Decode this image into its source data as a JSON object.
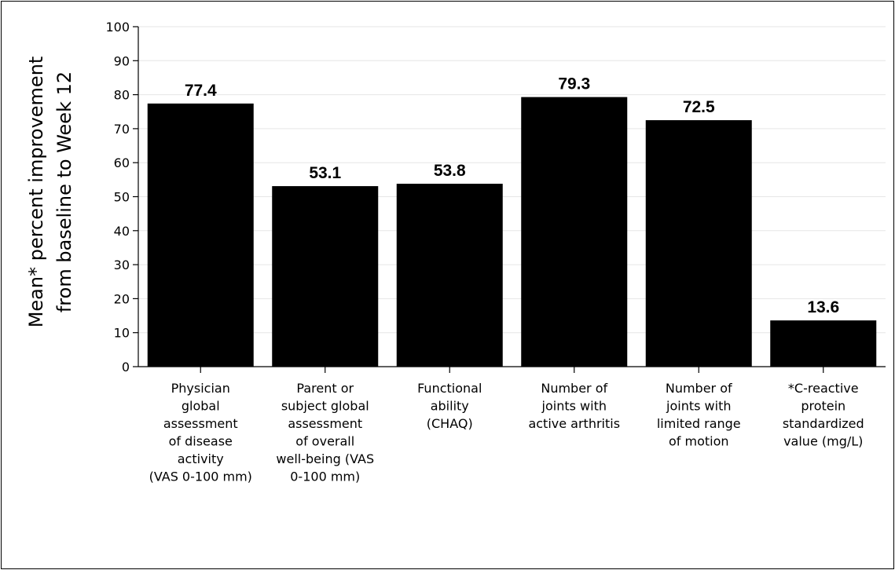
{
  "chart_data": {
    "type": "bar",
    "title": "",
    "xlabel": "",
    "ylabel_lines": [
      "Mean* percent improvement",
      "from baseline to Week 12"
    ],
    "ylim": [
      0,
      100
    ],
    "yticks": [
      0,
      10,
      20,
      30,
      40,
      50,
      60,
      70,
      80,
      90,
      100
    ],
    "categories": [
      [
        "Physician",
        "global",
        "assessment",
        "of disease",
        "activity",
        "(VAS 0-100 mm)"
      ],
      [
        "Parent or",
        "subject global",
        "assessment",
        "of overall",
        "well-being (VAS",
        "0-100 mm)"
      ],
      [
        "Functional",
        "ability",
        "(CHAQ)"
      ],
      [
        "Number of",
        "joints with",
        "active arthritis"
      ],
      [
        "Number of",
        "joints with",
        "limited range",
        "of motion"
      ],
      [
        "*C-reactive",
        "protein",
        "standardized",
        "value (mg/L)"
      ]
    ],
    "values": [
      77.4,
      53.1,
      53.8,
      79.3,
      72.5,
      13.6
    ],
    "value_labels": [
      "77.4",
      "53.1",
      "53.8",
      "79.3",
      "72.5",
      "13.6"
    ],
    "bar_color": "#000000",
    "grid": true,
    "grid_color": "#e6e6e6"
  }
}
